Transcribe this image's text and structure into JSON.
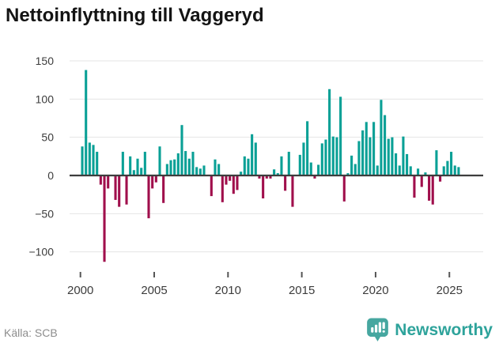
{
  "title": "Nettoinflyttning till Vaggeryd",
  "source": "Källa: SCB",
  "branding": {
    "name": "Newsworthy"
  },
  "colors": {
    "positive_bar": "#0aa096",
    "negative_bar": "#a00f4c",
    "grid": "#e4e4e4",
    "zero_line": "#3d3d3d",
    "title_text": "#141414",
    "axis_text": "#3c3c3c",
    "source_text": "#8d8d8d",
    "brand_teal": "#2ea39b",
    "brand_badge": "#46a7a0"
  },
  "chart_data": {
    "type": "bar",
    "title": "Nettoinflyttning till Vaggeryd",
    "x_unit": "quarter",
    "start": "2000Q1",
    "end": "2025Q3",
    "x_tick_years": [
      2000,
      2005,
      2010,
      2015,
      2020,
      2025
    ],
    "x_tick_labels": [
      "2000",
      "2005",
      "2010",
      "2015",
      "2020",
      "2025"
    ],
    "y_ticks": [
      150,
      100,
      50,
      0,
      -50,
      -100
    ],
    "y_tick_labels": [
      "150",
      "100",
      "50",
      "0",
      "−50",
      "−100"
    ],
    "ylim": [
      -125,
      160
    ],
    "grid": true,
    "legend": "none",
    "values": [
      38,
      138,
      43,
      40,
      31,
      -12,
      -113,
      -17,
      0,
      -32,
      -41,
      31,
      -38,
      25,
      7,
      22,
      10,
      31,
      -56,
      -17,
      -9,
      38,
      -36,
      15,
      20,
      21,
      29,
      66,
      32,
      22,
      31,
      11,
      9,
      13,
      0,
      -27,
      21,
      15,
      -35,
      -12,
      -7,
      -24,
      -19,
      5,
      25,
      22,
      54,
      43,
      -4,
      -30,
      -4,
      -4,
      8,
      3,
      25,
      -20,
      31,
      -41,
      0,
      27,
      43,
      71,
      17,
      -4,
      14,
      42,
      47,
      113,
      51,
      50,
      103,
      -34,
      3,
      26,
      15,
      45,
      59,
      70,
      50,
      70,
      13,
      99,
      79,
      48,
      50,
      29,
      13,
      51,
      28,
      12,
      -29,
      9,
      -15,
      4,
      -33,
      -38,
      33,
      -8,
      12,
      19,
      31,
      13,
      11
    ]
  }
}
